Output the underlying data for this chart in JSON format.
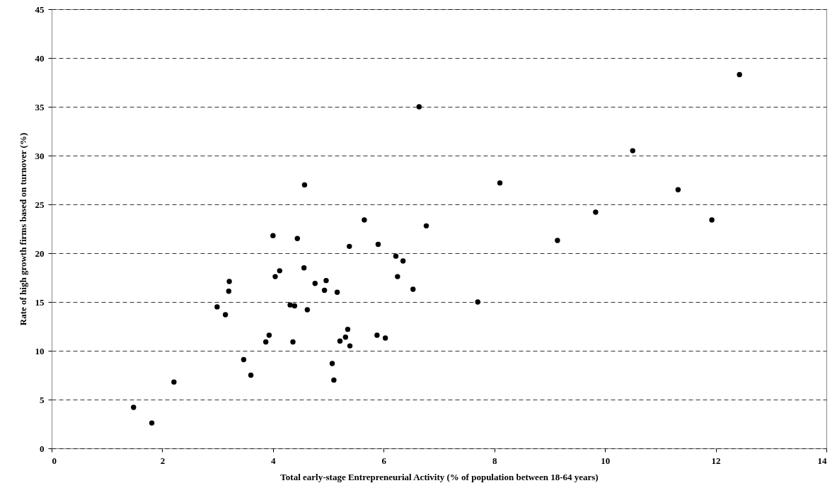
{
  "chart_data": {
    "type": "scatter",
    "xlabel": "Total early-stage Entrepreneurial Activity (% of population between 18-64 years)",
    "ylabel": "Rate of high growth firms based on turnover (%)",
    "x": [
      1.48,
      1.81,
      2.21,
      2.99,
      3.14,
      3.2,
      3.21,
      3.47,
      3.6,
      3.87,
      3.93,
      4.0,
      4.04,
      4.12,
      4.31,
      4.36,
      4.39,
      4.44,
      4.56,
      4.57,
      4.62,
      4.76,
      4.93,
      4.96,
      5.07,
      5.1,
      5.16,
      5.21,
      5.31,
      5.35,
      5.38,
      5.39,
      5.65,
      5.88,
      5.9,
      6.03,
      6.22,
      6.25,
      6.35,
      6.53,
      6.64,
      6.77,
      7.7,
      8.1,
      9.14,
      9.83,
      10.5,
      11.32,
      11.93,
      12.43
    ],
    "values": [
      4.2,
      2.6,
      6.8,
      14.5,
      13.7,
      16.1,
      17.1,
      9.1,
      7.5,
      10.9,
      11.6,
      21.8,
      17.6,
      18.2,
      14.7,
      10.9,
      14.6,
      21.5,
      18.5,
      27.0,
      14.2,
      16.9,
      16.2,
      17.2,
      8.7,
      7.0,
      16.0,
      11.0,
      11.4,
      12.2,
      20.7,
      10.5,
      23.4,
      11.6,
      20.9,
      11.3,
      19.7,
      17.6,
      19.2,
      16.3,
      35.0,
      22.8,
      15.0,
      27.2,
      21.3,
      24.2,
      30.5,
      26.5,
      23.4,
      38.3
    ],
    "color": "#000000",
    "marker": "circle",
    "xlim": [
      0,
      14
    ],
    "xticks": [
      0,
      2,
      4,
      6,
      8,
      10,
      12,
      14
    ],
    "ylim": [
      0,
      45
    ],
    "yticks": [
      0,
      5,
      10,
      15,
      20,
      25,
      30,
      35,
      40,
      45
    ],
    "grid": "y"
  }
}
